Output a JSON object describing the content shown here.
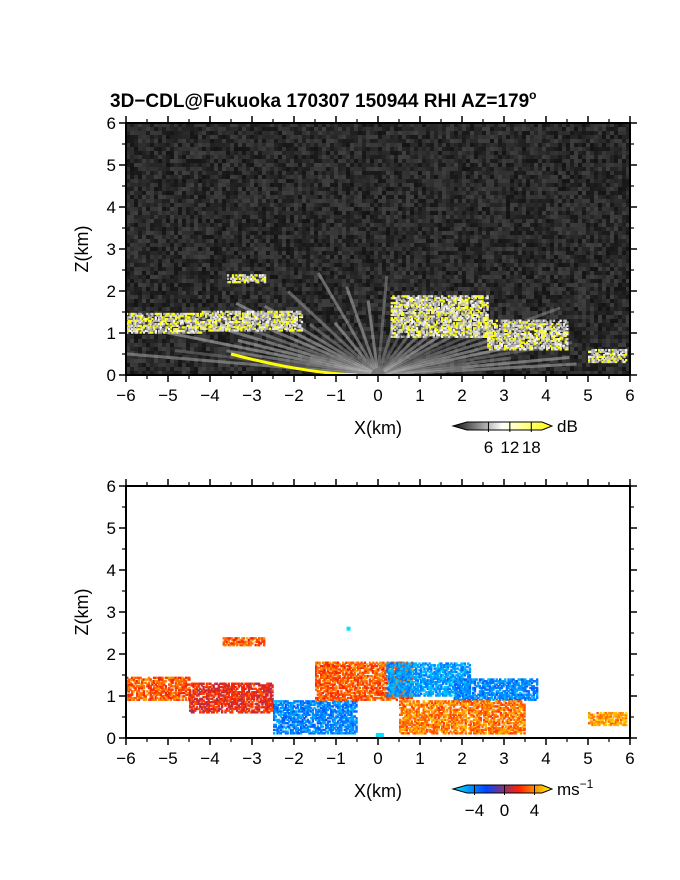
{
  "title": "3D−CDL@Fukuoka 170307 150944 RHI AZ=179",
  "title_degree": "o",
  "chart_data": [
    {
      "type": "heatmap",
      "panel": "reflectivity",
      "xlabel": "X(km)",
      "ylabel": "Z(km)",
      "xlim": [
        -6,
        6
      ],
      "ylim": [
        0,
        6
      ],
      "xticks": [
        "−6",
        "−5",
        "−4",
        "−3",
        "−2",
        "−1",
        "0",
        "1",
        "2",
        "3",
        "4",
        "5",
        "6"
      ],
      "yticks": [
        "0",
        "1",
        "2",
        "3",
        "4",
        "5",
        "6"
      ],
      "background": "gray noise",
      "colorbar": {
        "unit": "dB",
        "ticks": [
          "6",
          "12",
          "18"
        ],
        "range": [
          0,
          21
        ],
        "colors": [
          "#111111",
          "#ffffff",
          "#ffff00"
        ]
      },
      "echo_layers": [
        {
          "x_start": -6.0,
          "x_end": -4.2,
          "z_base": 1.0,
          "z_top": 1.45
        },
        {
          "x_start": -4.2,
          "x_end": -1.8,
          "z_base": 1.05,
          "z_top": 1.5
        },
        {
          "x_start": -3.6,
          "x_end": -2.7,
          "z_base": 2.2,
          "z_top": 2.4
        },
        {
          "x_start": 0.3,
          "x_end": 2.6,
          "z_base": 0.9,
          "z_top": 1.9
        },
        {
          "x_start": 2.6,
          "x_end": 4.5,
          "z_base": 0.6,
          "z_top": 1.3
        },
        {
          "x_start": 5.0,
          "x_end": 5.9,
          "z_base": 0.3,
          "z_top": 0.6
        }
      ]
    },
    {
      "type": "heatmap",
      "panel": "doppler velocity",
      "xlabel": "X(km)",
      "ylabel": "Z(km)",
      "xlim": [
        -6,
        6
      ],
      "ylim": [
        0,
        6
      ],
      "xticks": [
        "−6",
        "−5",
        "−4",
        "−3",
        "−2",
        "−1",
        "0",
        "1",
        "2",
        "3",
        "4",
        "5",
        "6"
      ],
      "yticks": [
        "0",
        "1",
        "2",
        "3",
        "4",
        "5",
        "6"
      ],
      "colorbar": {
        "unit": "ms",
        "unit_exponent": "−1",
        "ticks": [
          "−4",
          "0",
          "4"
        ],
        "range": [
          -5,
          5
        ],
        "colors": [
          "#00e5ff",
          "#0044ff",
          "#ff2200",
          "#ffff00"
        ]
      },
      "velocity_regions": [
        {
          "x_start": -6.0,
          "x_end": -4.5,
          "z_base": 0.9,
          "z_top": 1.45,
          "velocity": 2.5
        },
        {
          "x_start": -4.5,
          "x_end": -2.5,
          "z_base": 0.6,
          "z_top": 1.3,
          "velocity": 1.5
        },
        {
          "x_start": -3.7,
          "x_end": -2.7,
          "z_base": 2.2,
          "z_top": 2.4,
          "velocity": 2.5
        },
        {
          "x_start": -2.5,
          "x_end": -0.5,
          "z_base": 0.1,
          "z_top": 0.9,
          "velocity": -3
        },
        {
          "x_start": -1.5,
          "x_end": 0.8,
          "z_base": 0.9,
          "z_top": 1.8,
          "velocity": 2.5
        },
        {
          "x_start": 0.2,
          "x_end": 2.2,
          "z_base": 1.0,
          "z_top": 1.8,
          "velocity": -3.5
        },
        {
          "x_start": 1.8,
          "x_end": 3.8,
          "z_base": 0.9,
          "z_top": 1.4,
          "velocity": -3
        },
        {
          "x_start": 0.5,
          "x_end": 3.5,
          "z_base": 0.1,
          "z_top": 0.9,
          "velocity": 3
        },
        {
          "x_start": 5.0,
          "x_end": 5.9,
          "z_base": 0.3,
          "z_top": 0.6,
          "velocity": 3.5
        }
      ]
    }
  ]
}
